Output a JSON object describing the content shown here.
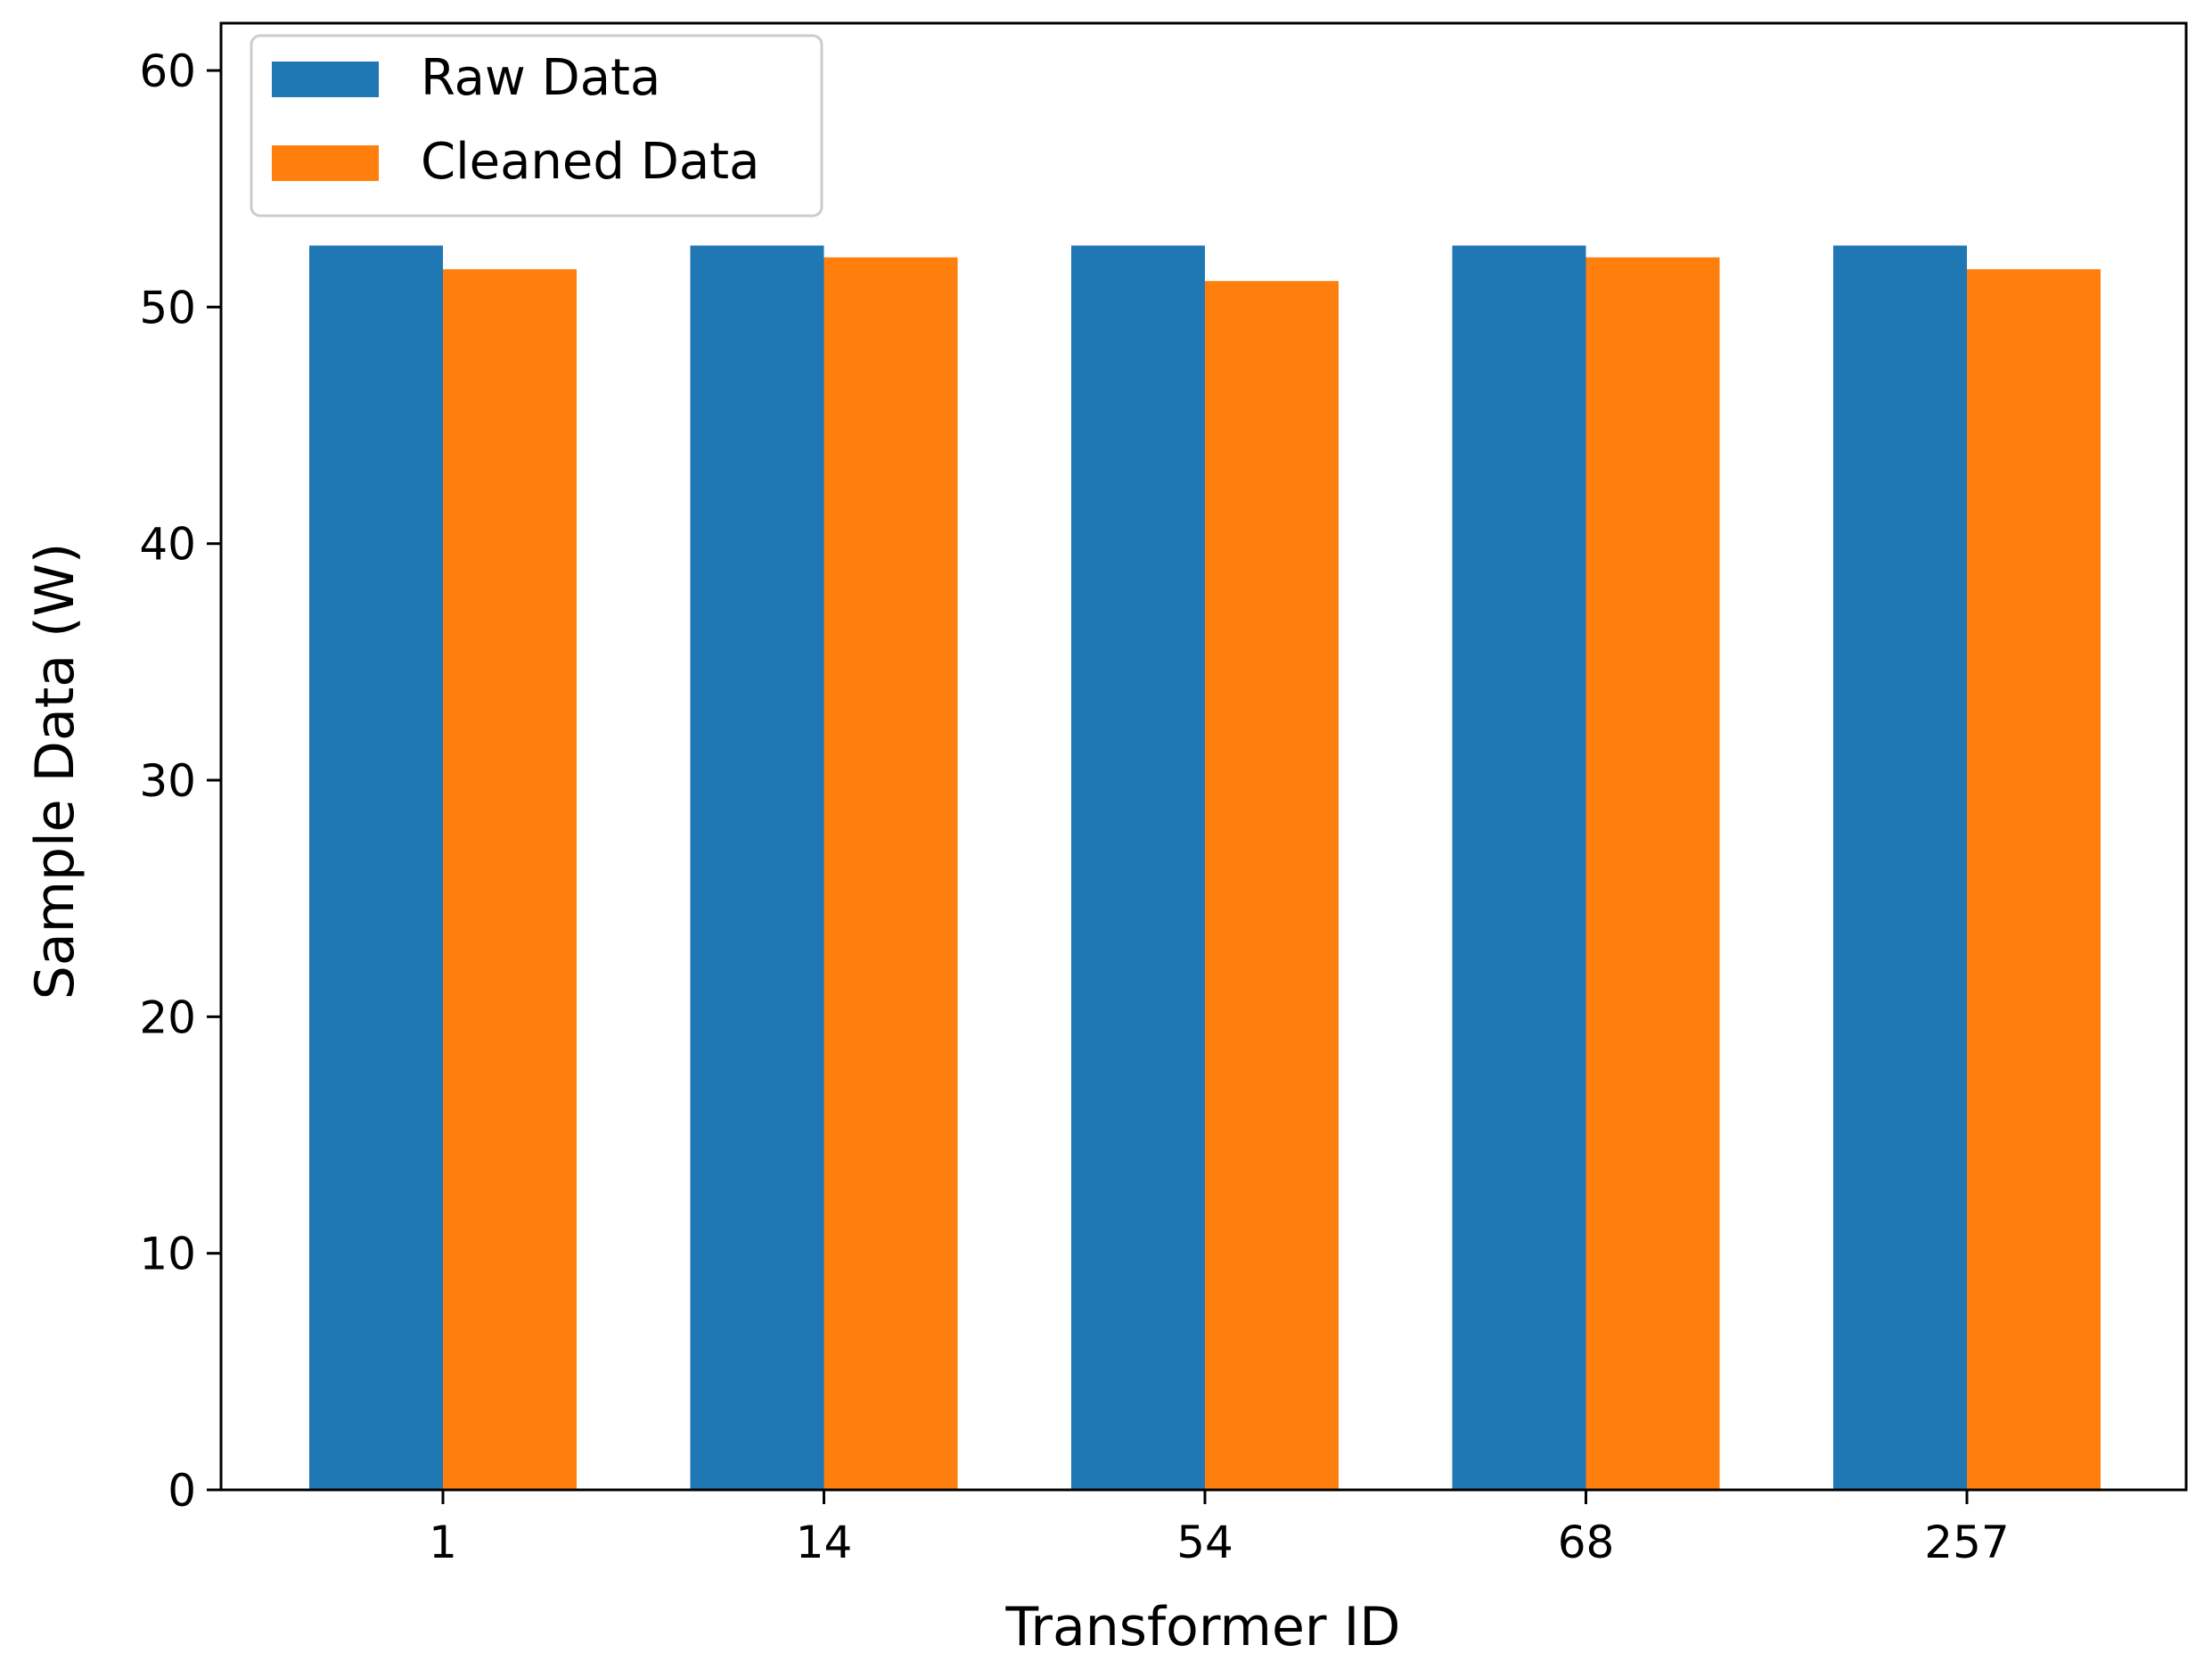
{
  "chart_data": {
    "type": "bar",
    "title": "",
    "xlabel": "Transformer ID",
    "ylabel": "Sample Data (W)",
    "categories": [
      "1",
      "14",
      "54",
      "68",
      "257"
    ],
    "series": [
      {
        "name": "Raw Data",
        "color": "#1f77b4",
        "values": [
          52.6,
          52.6,
          52.6,
          52.6,
          52.6
        ]
      },
      {
        "name": "Cleaned Data",
        "color": "#ff7f0e",
        "values": [
          51.6,
          52.1,
          51.1,
          52.1,
          51.6
        ]
      }
    ],
    "ylim": [
      0,
      62
    ],
    "yticks": [
      0,
      10,
      20,
      30,
      40,
      50,
      60
    ],
    "grid": false,
    "legend_position": "top-left"
  }
}
